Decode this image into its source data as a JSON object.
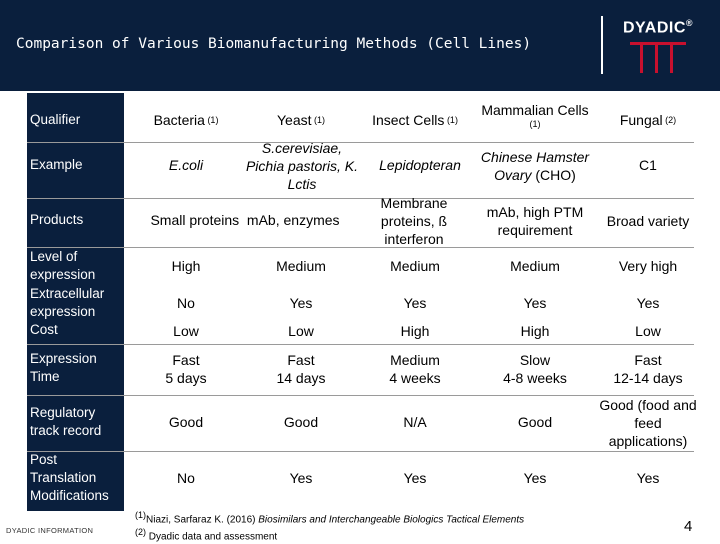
{
  "title": "Comparison of Various Biomanufacturing Methods (Cell Lines)",
  "logo": "DYADIC",
  "logo_reg": "®",
  "headers": {
    "qualifier": "Qualifier",
    "bacteria": "Bacteria",
    "bacteria_ref": "(1)",
    "yeast": "Yeast",
    "yeast_ref": "(1)",
    "insect": "Insect Cells",
    "insect_ref": "(1)",
    "mammalian": "Mammalian Cells",
    "mammalian_ref": "(1)",
    "fungal": "Fungal",
    "fungal_ref": "(2)"
  },
  "row_labels": {
    "example": "Example",
    "products": "Products",
    "level": "Level of expression",
    "extracellular": "Extracellular expression",
    "cost": "Cost",
    "time": "Expression Time",
    "regulatory": "Regulatory track record",
    "ptm": "Post Translation Modifications"
  },
  "example": {
    "bacteria": "E.coli",
    "yeast_italic": "S.cerevisiae, Pichia pastoris, K. Lctis",
    "insect": "Lepidopteran",
    "mammalian_italic": "Chinese Hamster Ovary",
    "mammalian_rest": " (CHO)",
    "fungal": "C1"
  },
  "products": {
    "bacteria_yeast": "Small proteins  mAb, enzymes",
    "insect": "Membrane proteins, ß interferon",
    "mammalian": "mAb, high PTM requirement",
    "fungal": "Broad variety"
  },
  "level": {
    "bacteria": "High",
    "yeast": "Medium",
    "insect": "Medium",
    "mammalian": "Medium",
    "fungal": "Very high"
  },
  "extracellular": {
    "bacteria": "No",
    "yeast": "Yes",
    "insect": "Yes",
    "mammalian": "Yes",
    "fungal": "Yes"
  },
  "cost": {
    "bacteria": "Low",
    "yeast": "Low",
    "insect": "High",
    "mammalian": "High",
    "fungal": "Low"
  },
  "time": {
    "bacteria_a": "Fast",
    "bacteria_b": "5 days",
    "yeast_a": "Fast",
    "yeast_b": "14 days",
    "insect_a": "Medium",
    "insect_b": "4 weeks",
    "mammalian_a": "Slow",
    "mammalian_b": "4-8 weeks",
    "fungal_a": "Fast",
    "fungal_b": "12-14 days"
  },
  "regulatory": {
    "bacteria": "Good",
    "yeast": "Good",
    "insect": "N/A",
    "mammalian": "Good",
    "fungal": "Good (food and feed applications)"
  },
  "ptm": {
    "bacteria": "No",
    "yeast": "Yes",
    "insect": "Yes",
    "mammalian": "Yes",
    "fungal": "Yes"
  },
  "footnotes": {
    "n1": "(1)",
    "n1_a": "Niazi, Sarfaraz K. (2016) ",
    "n1_b": "Biosimilars and Interchangeable Biologics Tactical Elements",
    "n2": "(2)",
    "n2_a": " Dyadic data and assessment"
  },
  "info": "DYADIC INFORMATION",
  "page_number": "4",
  "colors": {
    "navy": "#0a1f3d",
    "logo_red": "#c8102e",
    "rule": "#9a9a9a"
  }
}
